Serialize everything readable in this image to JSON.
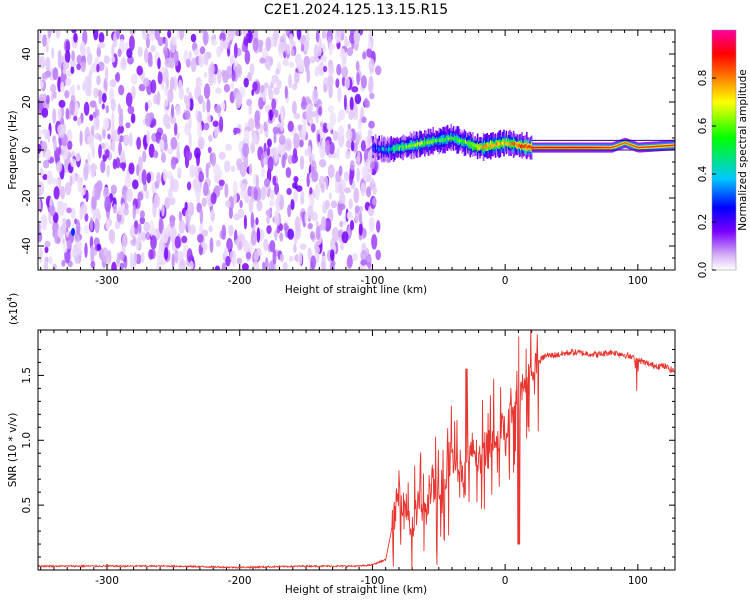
{
  "title": "C2E1.2024.125.13.15.R15",
  "chart_data": [
    {
      "type": "heatmap",
      "xlabel": "Height of straight line (km)",
      "ylabel": "Frequency (Hz)",
      "xlim": [
        -352,
        128
      ],
      "ylim": [
        -50,
        50
      ],
      "xticks": [
        -300,
        -200,
        -100,
        0,
        100
      ],
      "yticks": [
        -40,
        -20,
        0,
        20,
        40
      ],
      "colorbar": {
        "label": "Normalized spectral amplitude",
        "range": [
          0,
          1
        ],
        "ticks": [
          "0.0",
          "0.2",
          "0.4",
          "0.6",
          "0.8"
        ],
        "colors": [
          "#ffffff",
          "#d7b4f5",
          "#7b00ff",
          "#0000ff",
          "#00c8ff",
          "#00ff00",
          "#ffff00",
          "#ff8000",
          "#ff0000",
          "#ff00a0"
        ]
      },
      "regions": [
        {
          "x_range": [
            -352,
            -100
          ],
          "frequency_range": [
            -50,
            50
          ],
          "description_level": 0.05
        },
        {
          "x_range": [
            -100,
            128
          ],
          "frequency_center": 2,
          "frequency_width": 6,
          "peak_level": 0.9
        }
      ],
      "ridge": {
        "x": [
          -100,
          -90,
          -80,
          -70,
          -60,
          -50,
          -40,
          -30,
          -20,
          -10,
          0,
          10,
          20,
          40,
          60,
          80,
          90,
          100,
          128
        ],
        "frequency": [
          1,
          0,
          1,
          2,
          3,
          4,
          5,
          3,
          1,
          2,
          3,
          2,
          1,
          1,
          1,
          1,
          3,
          1,
          2
        ],
        "amplitude": [
          0.35,
          0.45,
          0.55,
          0.6,
          0.6,
          0.55,
          0.55,
          0.6,
          0.7,
          0.75,
          0.7,
          0.8,
          0.9,
          0.9,
          0.9,
          0.85,
          0.8,
          0.85,
          0.85
        ]
      }
    },
    {
      "type": "line",
      "xlabel": "Height of straight line (km)",
      "ylabel": "SNR (10 * v/v)",
      "multiplier_label": "(x10",
      "multiplier_exp": "4",
      "multiplier_close": ")",
      "xlim": [
        -352,
        128
      ],
      "ylim": [
        0.0,
        1.85
      ],
      "xticks": [
        -300,
        -200,
        -100,
        0,
        100
      ],
      "yticks": [
        "0.5",
        "1.0",
        "1.5"
      ],
      "series": [
        {
          "color": "#e8352f",
          "x": [
            -352,
            -300,
            -250,
            -200,
            -150,
            -110,
            -100,
            -90,
            -80,
            -75,
            -70,
            -65,
            -60,
            -55,
            -50,
            -45,
            -40,
            -35,
            -30,
            -25,
            -20,
            -15,
            -10,
            -5,
            0,
            5,
            10,
            15,
            20,
            25,
            30,
            40,
            50,
            60,
            70,
            80,
            90,
            100,
            110,
            120,
            128
          ],
          "y": [
            0.03,
            0.03,
            0.03,
            0.02,
            0.03,
            0.03,
            0.04,
            0.08,
            0.6,
            0.5,
            0.3,
            0.55,
            0.4,
            0.7,
            0.5,
            0.65,
            0.9,
            0.75,
            0.7,
            0.95,
            0.85,
            0.9,
            1.05,
            1.0,
            1.1,
            1.2,
            1.3,
            1.45,
            1.55,
            1.6,
            1.65,
            1.66,
            1.68,
            1.67,
            1.66,
            1.68,
            1.66,
            1.62,
            1.58,
            1.57,
            1.53
          ]
        }
      ]
    }
  ]
}
